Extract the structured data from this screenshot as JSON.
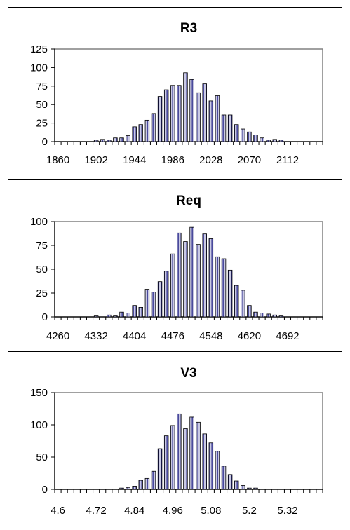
{
  "colors": {
    "bar_fill": "#c9c9e4",
    "bar_stripe": "#2a2a8a",
    "axis": "#000000",
    "plot_border": "#808080",
    "background": "#ffffff"
  },
  "chart_data": [
    {
      "type": "bar",
      "title": "R3",
      "xlabel": "",
      "ylabel": "",
      "ylim": [
        0,
        125
      ],
      "yticks": [
        "0",
        "25",
        "50",
        "75",
        "100",
        "125"
      ],
      "xtick_labels": [
        "1860",
        "1902",
        "1944",
        "1986",
        "2028",
        "2070",
        "2112"
      ],
      "bins": 42,
      "bin_width": 7,
      "categories": [
        "1860",
        "1867",
        "1874",
        "1881",
        "1888",
        "1895",
        "1902",
        "1909",
        "1916",
        "1923",
        "1930",
        "1937",
        "1944",
        "1951",
        "1958",
        "1965",
        "1972",
        "1979",
        "1986",
        "1993",
        "2000",
        "2007",
        "2014",
        "2021",
        "2028",
        "2035",
        "2042",
        "2049",
        "2056",
        "2063",
        "2070",
        "2077",
        "2084",
        "2091",
        "2098",
        "2105",
        "2112",
        "2119",
        "2126",
        "2133",
        "2140",
        "2147"
      ],
      "values": [
        0,
        0,
        0,
        0,
        0,
        0,
        2,
        3,
        2,
        5,
        5,
        8,
        20,
        23,
        29,
        38,
        61,
        70,
        76,
        76,
        93,
        84,
        66,
        78,
        55,
        62,
        36,
        36,
        23,
        17,
        13,
        9,
        5,
        2,
        3,
        2,
        0,
        0,
        0,
        0,
        0,
        0
      ],
      "grid": false,
      "legend": "none"
    },
    {
      "type": "bar",
      "title": "Req",
      "xlabel": "",
      "ylabel": "",
      "ylim": [
        0,
        100
      ],
      "yticks": [
        "0",
        "25",
        "50",
        "75",
        "100"
      ],
      "xtick_labels": [
        "4260",
        "4332",
        "4404",
        "4476",
        "4548",
        "4620",
        "4692"
      ],
      "bins": 42,
      "bin_width": 12,
      "categories": [
        "4260",
        "4272",
        "4284",
        "4296",
        "4308",
        "4320",
        "4332",
        "4344",
        "4356",
        "4368",
        "4380",
        "4392",
        "4404",
        "4416",
        "4428",
        "4440",
        "4452",
        "4464",
        "4476",
        "4488",
        "4500",
        "4512",
        "4524",
        "4536",
        "4548",
        "4560",
        "4572",
        "4584",
        "4596",
        "4608",
        "4620",
        "4632",
        "4644",
        "4656",
        "4668",
        "4680",
        "4692",
        "4704",
        "4716",
        "4728",
        "4740",
        "4752"
      ],
      "values": [
        0,
        0,
        0,
        0,
        0,
        0,
        1,
        0,
        2,
        1,
        5,
        4,
        12,
        10,
        29,
        26,
        37,
        48,
        66,
        88,
        79,
        94,
        76,
        87,
        82,
        63,
        61,
        49,
        33,
        28,
        12,
        5,
        4,
        3,
        2,
        1,
        0,
        0,
        0,
        0,
        0,
        0
      ],
      "grid": false,
      "legend": "none"
    },
    {
      "type": "bar",
      "title": "V3",
      "xlabel": "",
      "ylabel": "",
      "ylim": [
        0,
        150
      ],
      "yticks": [
        "0",
        "50",
        "100",
        "150"
      ],
      "xtick_labels": [
        "4.6",
        "4.72",
        "4.84",
        "4.96",
        "5.08",
        "5.2",
        "5.32"
      ],
      "bins": 42,
      "bin_width": 0.02,
      "categories": [
        "4.60",
        "4.62",
        "4.64",
        "4.66",
        "4.68",
        "4.70",
        "4.72",
        "4.74",
        "4.76",
        "4.78",
        "4.80",
        "4.82",
        "4.84",
        "4.86",
        "4.88",
        "4.90",
        "4.92",
        "4.94",
        "4.96",
        "4.98",
        "5.00",
        "5.02",
        "5.04",
        "5.06",
        "5.08",
        "5.10",
        "5.12",
        "5.14",
        "5.16",
        "5.18",
        "5.20",
        "5.22",
        "5.24",
        "5.26",
        "5.28",
        "5.30",
        "5.32",
        "5.34",
        "5.36",
        "5.38",
        "5.40",
        "5.42"
      ],
      "values": [
        0,
        0,
        0,
        0,
        0,
        0,
        0,
        0,
        0,
        0,
        2,
        3,
        5,
        14,
        17,
        28,
        63,
        83,
        99,
        117,
        94,
        112,
        104,
        86,
        72,
        59,
        36,
        23,
        13,
        6,
        2,
        2,
        0,
        0,
        0,
        0,
        0,
        0,
        0,
        0,
        0,
        0
      ],
      "grid": false,
      "legend": "none"
    }
  ]
}
